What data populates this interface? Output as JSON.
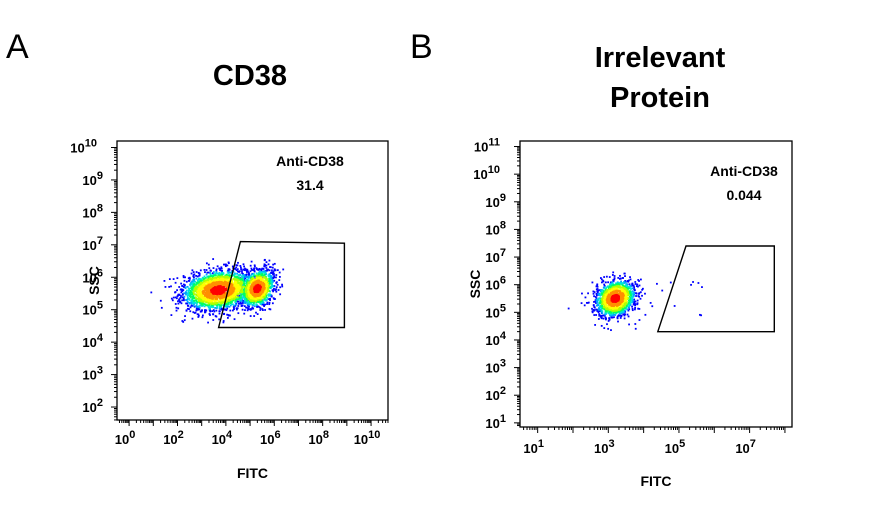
{
  "panels": [
    {
      "letter": "A",
      "title_lines": [
        "CD38"
      ],
      "chart_data": {
        "type": "scatter",
        "xlabel": "FITC",
        "ylabel": "SSC",
        "x_scale": "log",
        "y_scale": "log",
        "xlim_exp": [
          -0.5,
          10.7
        ],
        "ylim_exp": [
          1.6,
          10.2
        ],
        "x_ticks_exp": [
          0,
          2,
          4,
          6,
          8,
          10
        ],
        "y_ticks_exp": [
          2,
          3,
          4,
          5,
          6,
          7,
          8,
          9,
          10
        ],
        "gate": {
          "name": "Anti-CD38",
          "value": "31.4",
          "polygon_log": [
            [
              4.6,
              7.1
            ],
            [
              8.9,
              7.05
            ],
            [
              8.9,
              4.45
            ],
            [
              3.7,
              4.45
            ]
          ]
        },
        "populations": [
          {
            "center_log": [
              3.7,
              5.6
            ],
            "spread_log": [
              0.75,
              0.3
            ],
            "count": 2200
          },
          {
            "center_log": [
              5.3,
              5.65
            ],
            "spread_log": [
              0.35,
              0.28
            ],
            "count": 1100
          }
        ],
        "colors": [
          "#0000ff",
          "#00a0ff",
          "#00e0e0",
          "#00ff60",
          "#b0ff00",
          "#ffff00",
          "#ff9000",
          "#ff0000"
        ]
      }
    },
    {
      "letter": "B",
      "title_lines": [
        "Irrelevant",
        "Protein"
      ],
      "chart_data": {
        "type": "scatter",
        "xlabel": "FITC",
        "ylabel": "SSC",
        "x_scale": "log",
        "y_scale": "log",
        "xlim_exp": [
          0.5,
          8.2
        ],
        "ylim_exp": [
          0.85,
          11.2
        ],
        "x_ticks_exp": [
          1,
          3,
          5,
          7
        ],
        "y_ticks_exp": [
          1,
          2,
          3,
          4,
          5,
          6,
          7,
          8,
          9,
          10,
          11
        ],
        "gate": {
          "name": "Anti-CD38",
          "value": "0.044",
          "polygon_log": [
            [
              5.2,
              7.4
            ],
            [
              7.7,
              7.4
            ],
            [
              7.7,
              4.3
            ],
            [
              4.4,
              4.3
            ]
          ]
        },
        "populations": [
          {
            "center_log": [
              3.2,
              5.5
            ],
            "spread_log": [
              0.28,
              0.32
            ],
            "count": 1400
          }
        ],
        "colors": [
          "#0000ff",
          "#00a0ff",
          "#00e0e0",
          "#00ff60",
          "#b0ff00",
          "#ffff00",
          "#ff9000",
          "#ff0000"
        ]
      }
    }
  ]
}
